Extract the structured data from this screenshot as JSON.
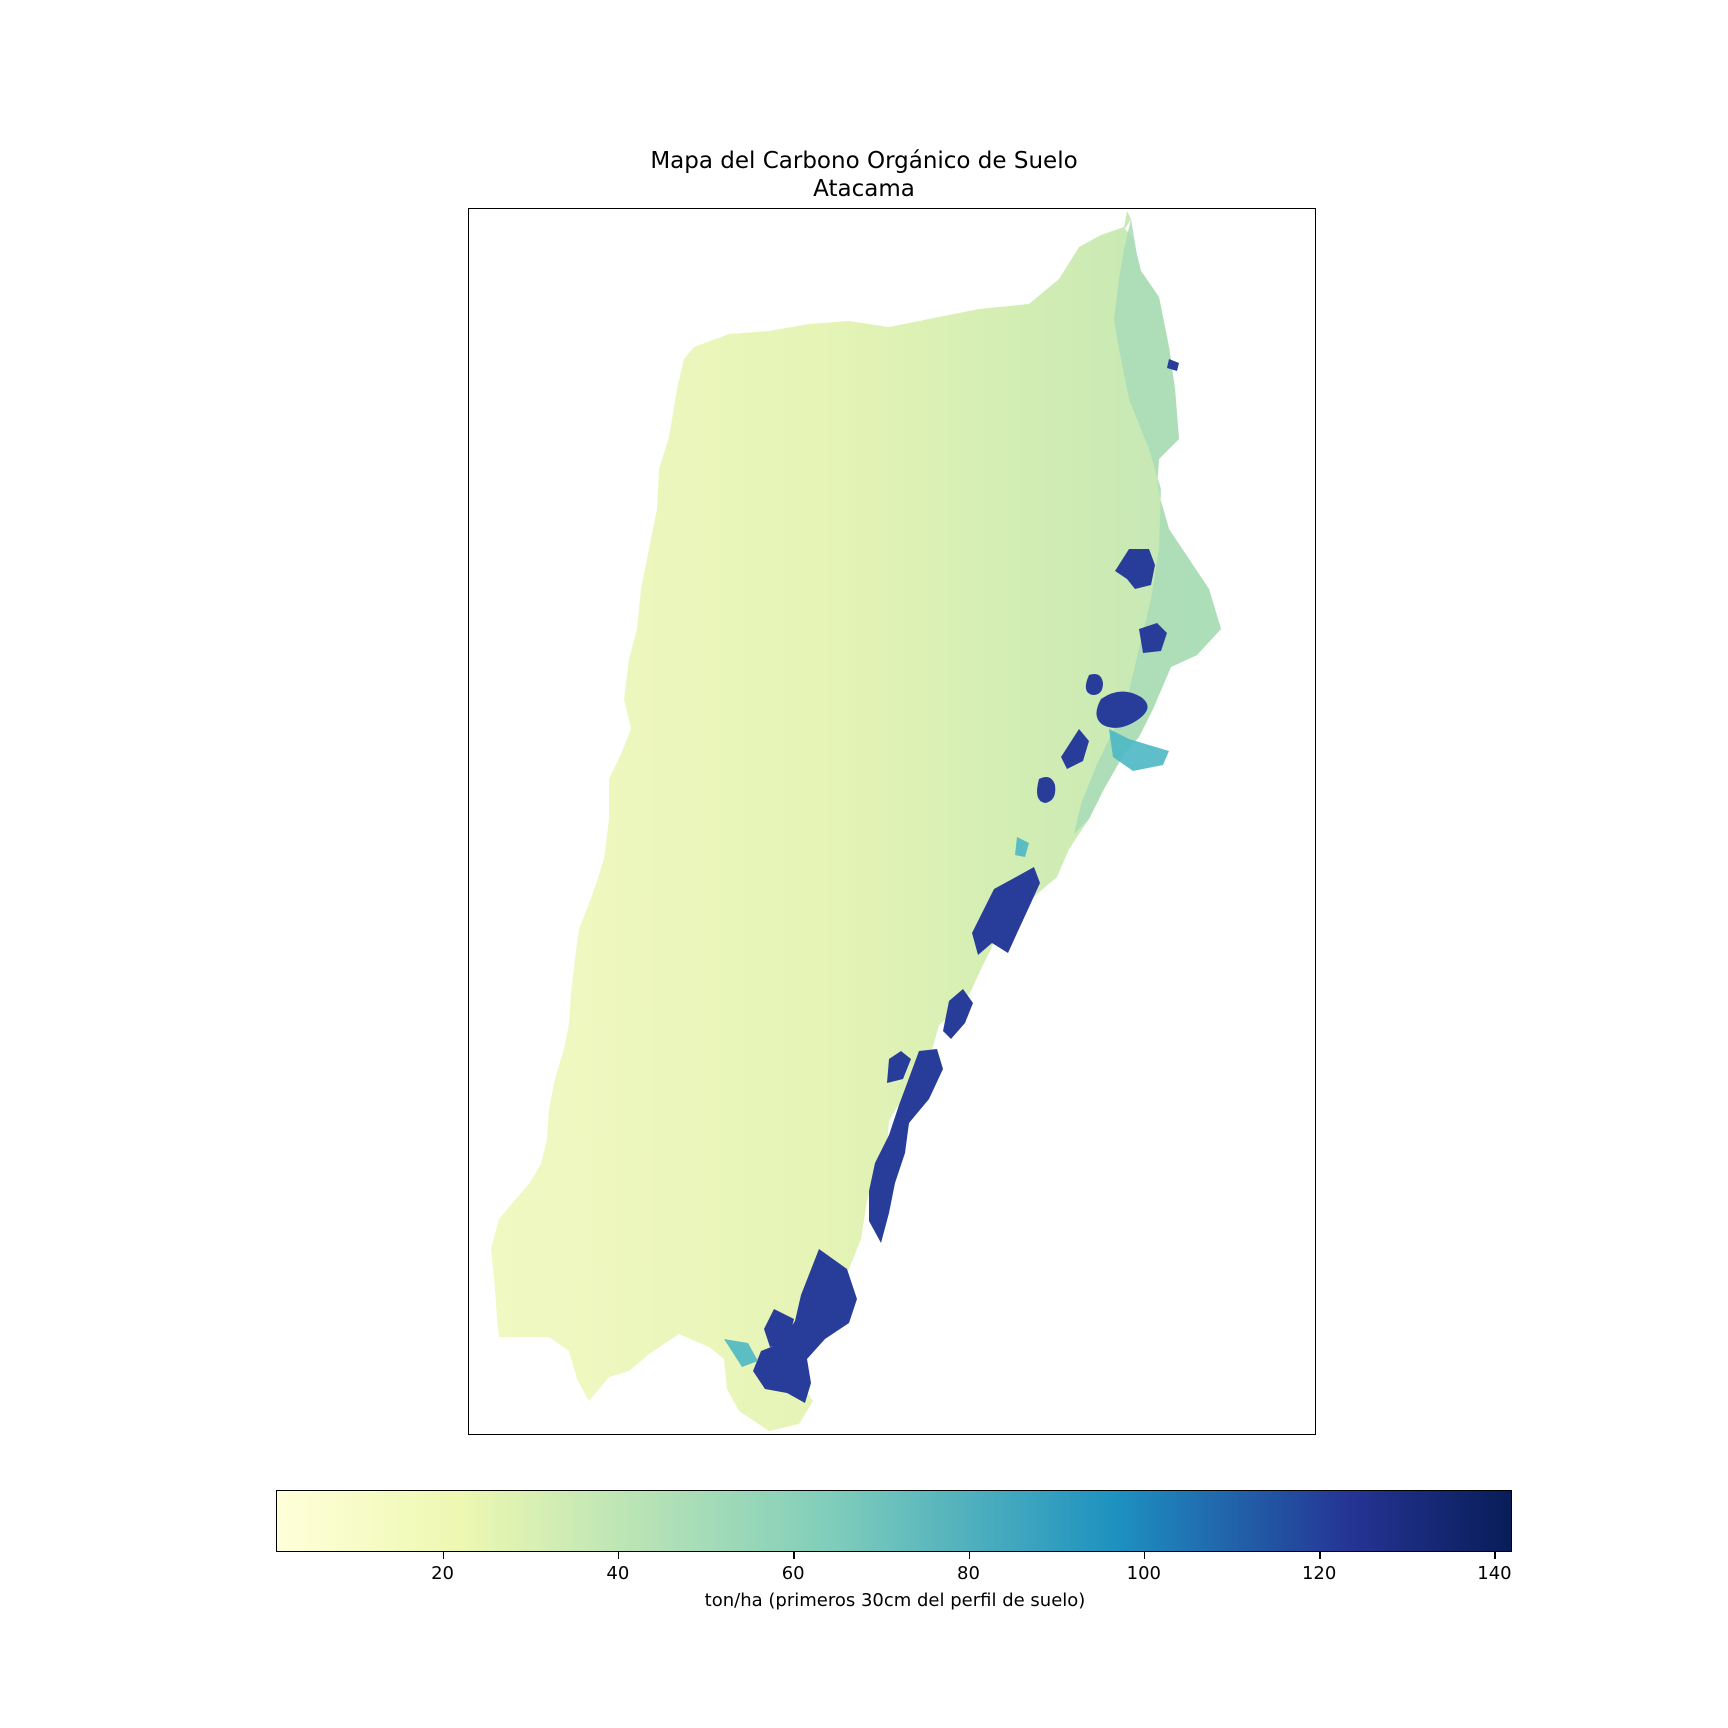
{
  "title": "Mapa del Carbono Orgánico de Suelo",
  "subtitle": "Atacama",
  "colorbar": {
    "label": "ton/ha (primeros 30cm del perfil de suelo)",
    "colormap": "YlGnBu",
    "range": [
      1,
      142
    ],
    "ticks": [
      20,
      40,
      60,
      80,
      100,
      120,
      140
    ],
    "tick_labels": [
      "20",
      "40",
      "60",
      "80",
      "100",
      "120",
      "140"
    ]
  },
  "colors": {
    "low": "#ffffd9",
    "mid_low": "#edf8b1",
    "mid": "#7fcdbb",
    "mid_high": "#1d91c0",
    "high_1": "#253494",
    "high_2": "#081d58"
  }
}
